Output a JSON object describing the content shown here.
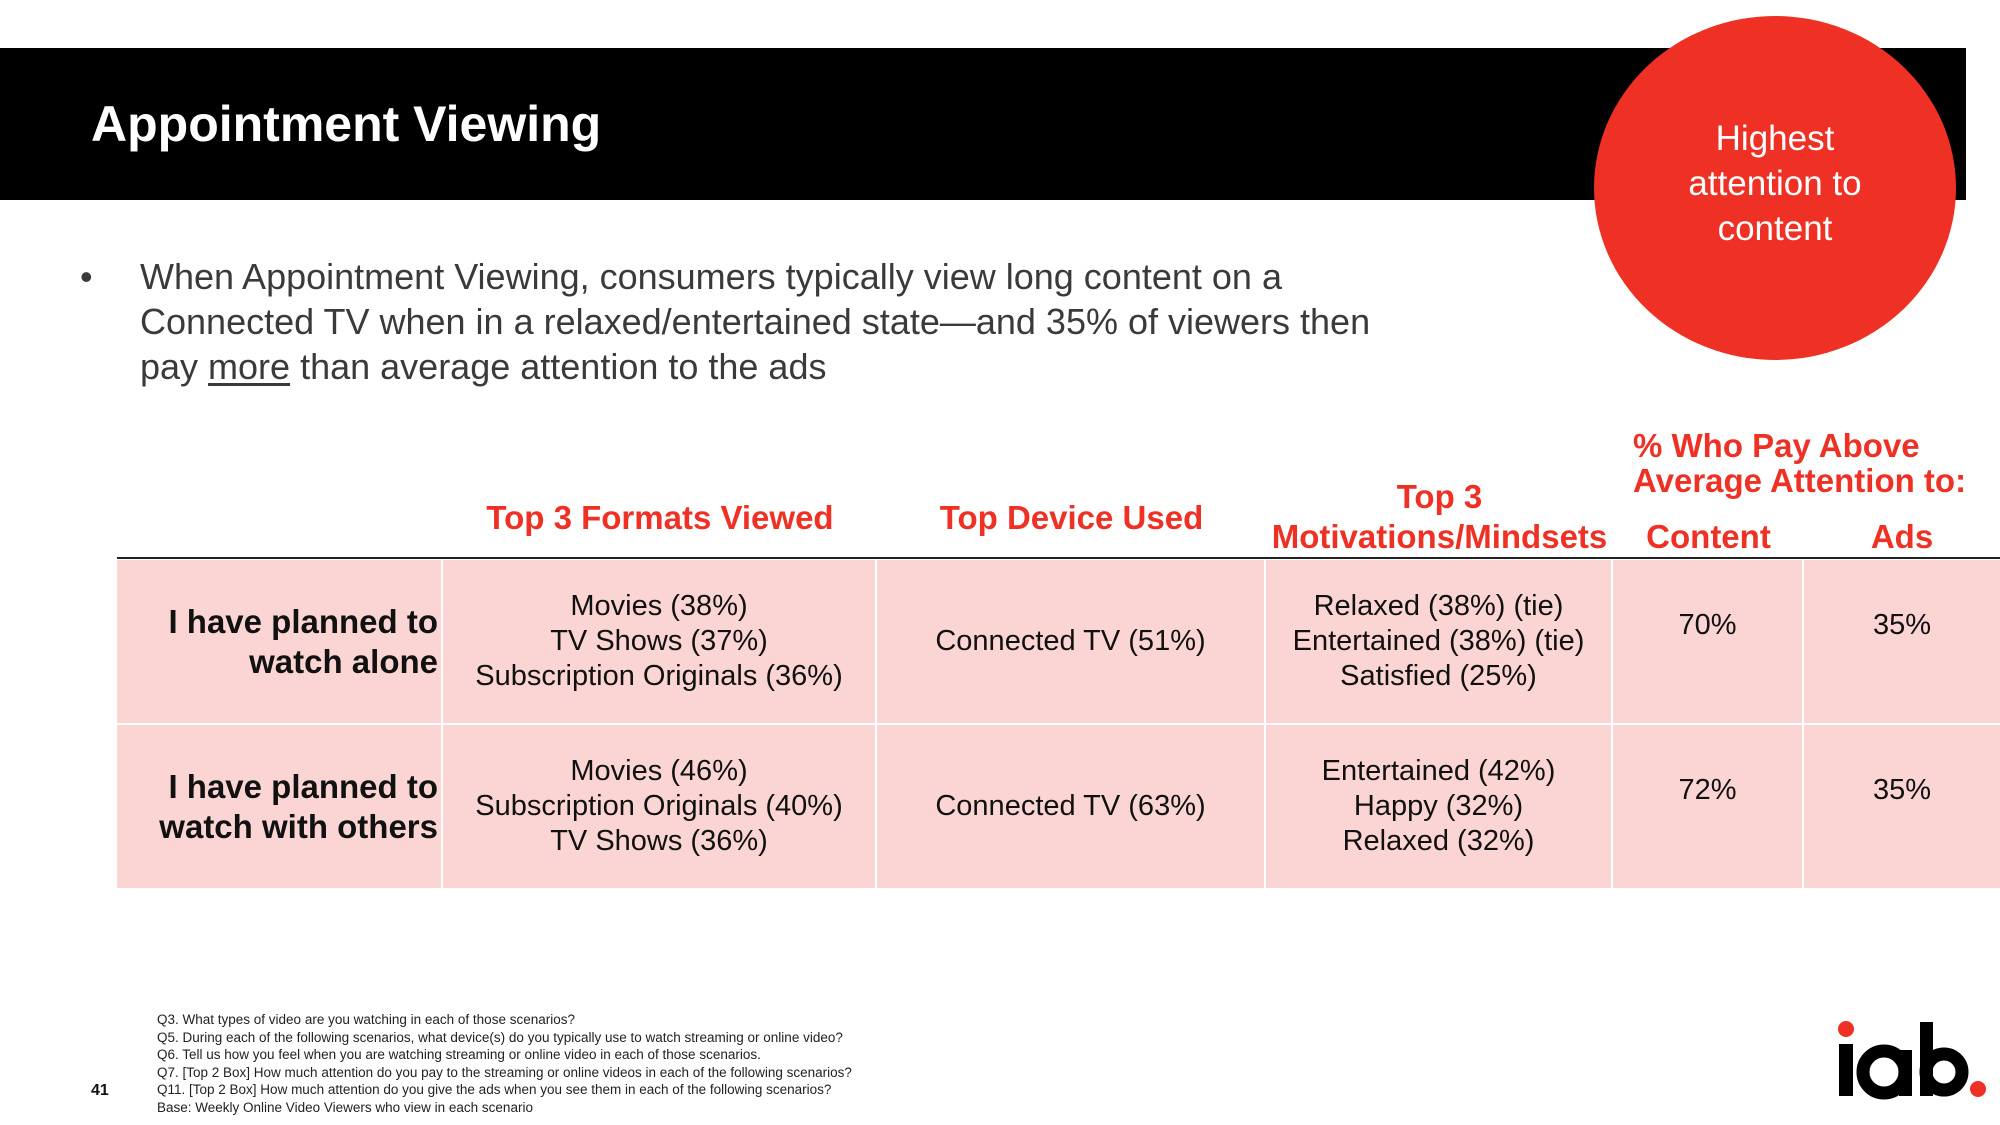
{
  "slide": {
    "title": "Appointment Viewing",
    "callout": "Highest attention to content",
    "bullet": {
      "before": "When Appointment Viewing, consumers typically view long content on a Connected TV when in a relaxed/entertained state—and 35% of viewers then pay ",
      "emphasis": "more",
      "after": " than average attention to the ads"
    },
    "page_number": "41"
  },
  "table": {
    "headers": {
      "formats": "Top 3 Formats Viewed",
      "device": "Top Device Used",
      "motivations_line1": "Top 3",
      "motivations_line2": "Motivations/Mindsets",
      "attention_group_line1": "% Who Pay Above",
      "attention_group_line2": "Average Attention to:",
      "content": "Content",
      "ads": "Ads"
    },
    "rows": [
      {
        "label_line1": "I have planned to",
        "label_line2": "watch alone",
        "formats": [
          "Movies (38%)",
          "TV Shows (37%)",
          "Subscription Originals (36%)"
        ],
        "device": "Connected TV (51%)",
        "motivations": [
          "Relaxed (38%) (tie)",
          "Entertained (38%) (tie)",
          "Satisfied (25%)"
        ],
        "content": "70%",
        "ads": "35%"
      },
      {
        "label_line1": "I have planned to",
        "label_line2": "watch with others",
        "formats": [
          "Movies (46%)",
          "Subscription Originals (40%)",
          "TV Shows (36%)"
        ],
        "device": "Connected TV (63%)",
        "motivations": [
          "Entertained (42%)",
          "Happy (32%)",
          "Relaxed (32%)"
        ],
        "content": "72%",
        "ads": "35%"
      }
    ]
  },
  "footnotes": [
    "Q3. What types of video are you watching in each of those scenarios?",
    "Q5. During each of the following scenarios, what device(s) do you typically use to watch streaming or online video?",
    "Q6. Tell us how you feel when you are watching streaming or online video in each of those scenarios.",
    "Q7. [Top 2 Box] How much attention do you pay to the streaming or online videos in each of the following scenarios?",
    "Q11. [Top 2 Box] How much attention do you give the ads when you see them in each of the following scenarios?",
    "Base: Weekly Online Video Viewers who view in each scenario"
  ],
  "logo": {
    "text": "iab",
    "accent_color": "#ee3124"
  },
  "colors": {
    "accent": "#ee3124",
    "row_fill": "#fbd5d4",
    "header_bar": "#000000"
  }
}
